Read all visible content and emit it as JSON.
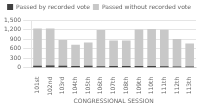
{
  "chart_data": {
    "type": "bar",
    "categories": [
      "101st",
      "102nd",
      "103rd",
      "104th",
      "105th",
      "106th",
      "107th",
      "108th",
      "109th",
      "110th",
      "111th",
      "112th",
      "113th"
    ],
    "series": [
      {
        "name": "Passed by recorded vote",
        "color": "#404040",
        "values": [
          65,
          70,
          60,
          55,
          60,
          50,
          55,
          55,
          55,
          58,
          50,
          38,
          38
        ]
      },
      {
        "name": "Passed without recorded vote",
        "color": "#c8c8c8",
        "values": [
          1230,
          1230,
          870,
          720,
          790,
          1185,
          855,
          855,
          1205,
          1220,
          1190,
          900,
          760
        ]
      }
    ],
    "xlabel": "CONGRESSIONAL SESSION",
    "ylim": [
      0,
      1500
    ],
    "yticks": [
      0,
      300,
      600,
      900,
      1200,
      1500
    ],
    "grid": true,
    "legend": "top"
  }
}
